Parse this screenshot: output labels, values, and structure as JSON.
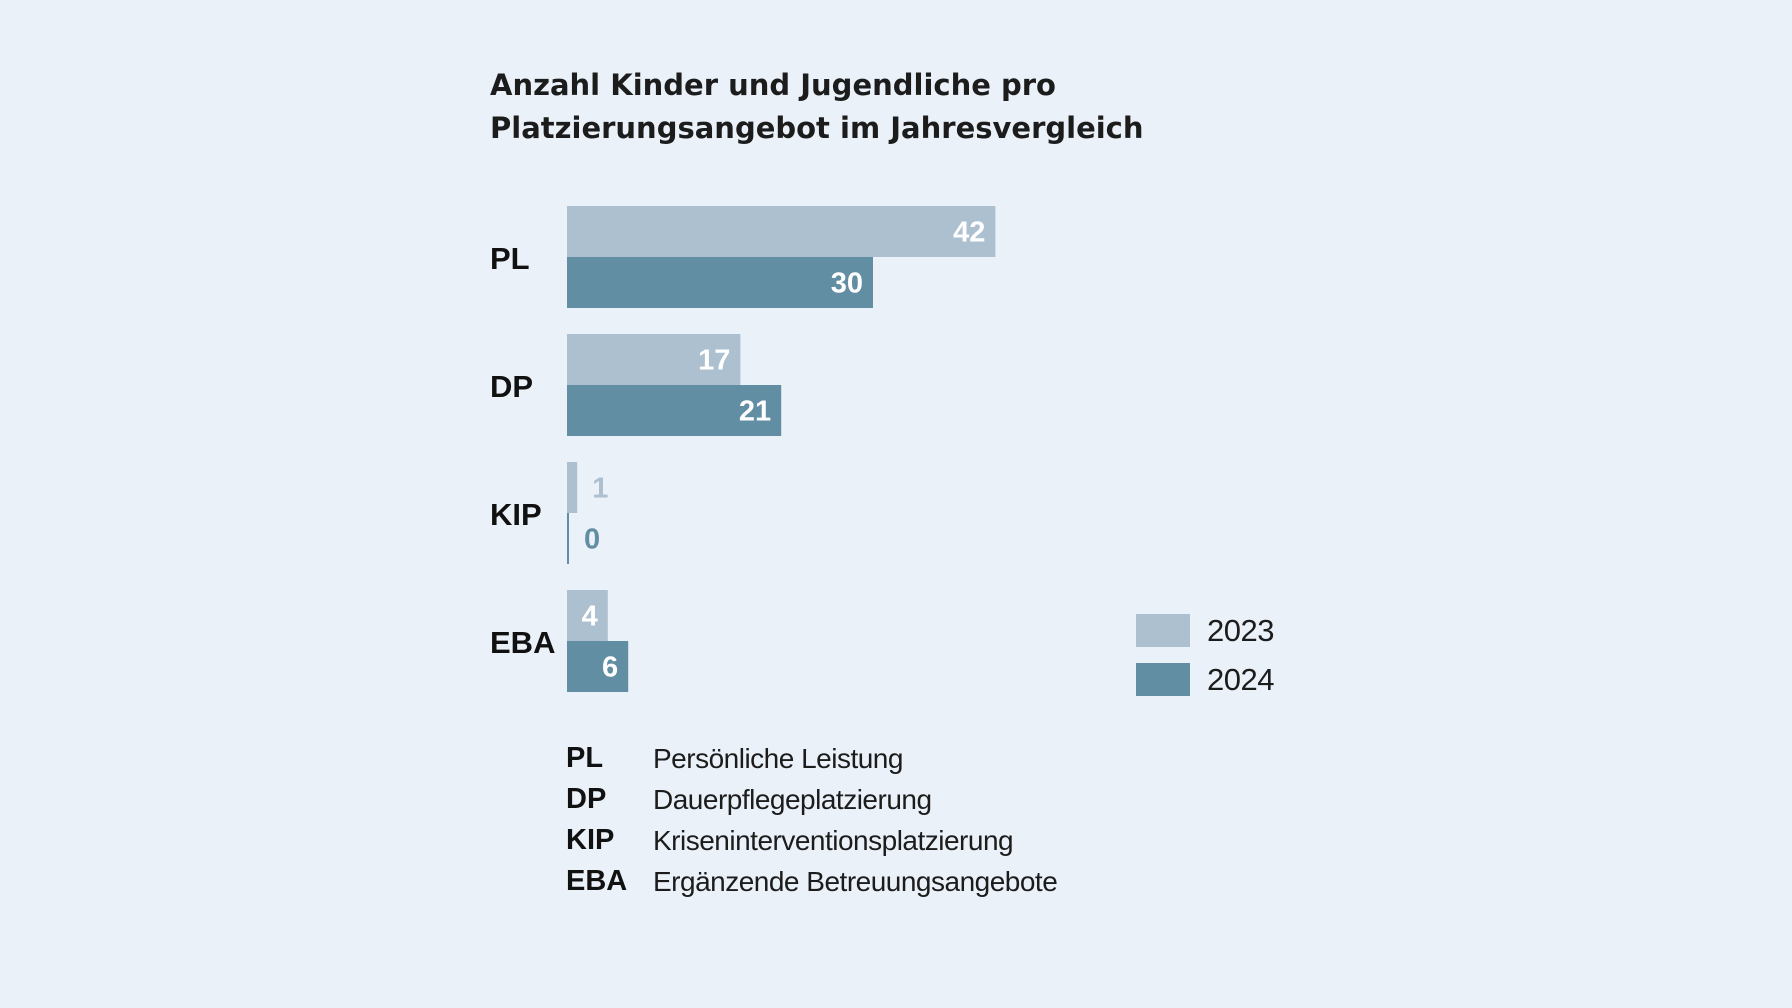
{
  "chart_data": {
    "type": "bar",
    "orientation": "horizontal",
    "title": "Anzahl Kinder und Jugendliche pro Platzierungsangebot im Jahresvergleich",
    "categories": [
      "PL",
      "DP",
      "KIP",
      "EBA"
    ],
    "series": [
      {
        "name": "2023",
        "values": [
          42,
          17,
          1,
          4
        ],
        "color": "#adc0d0",
        "label_color_outside": "#adc0d0"
      },
      {
        "name": "2024",
        "values": [
          30,
          21,
          0,
          6
        ],
        "color": "#628ea4",
        "label_color_outside": "#628ea4"
      }
    ],
    "xlim": [
      0,
      42
    ],
    "grid": false,
    "legend_position": "right"
  },
  "glossary": [
    {
      "abbr": "PL",
      "text": "Persönliche Leistung"
    },
    {
      "abbr": "DP",
      "text": "Dauerpflegeplatzierung"
    },
    {
      "abbr": "KIP",
      "text": "Kriseninterventionsplatzierung"
    },
    {
      "abbr": "EBA",
      "text": "Ergänzende Betreuungsangebote"
    }
  ]
}
